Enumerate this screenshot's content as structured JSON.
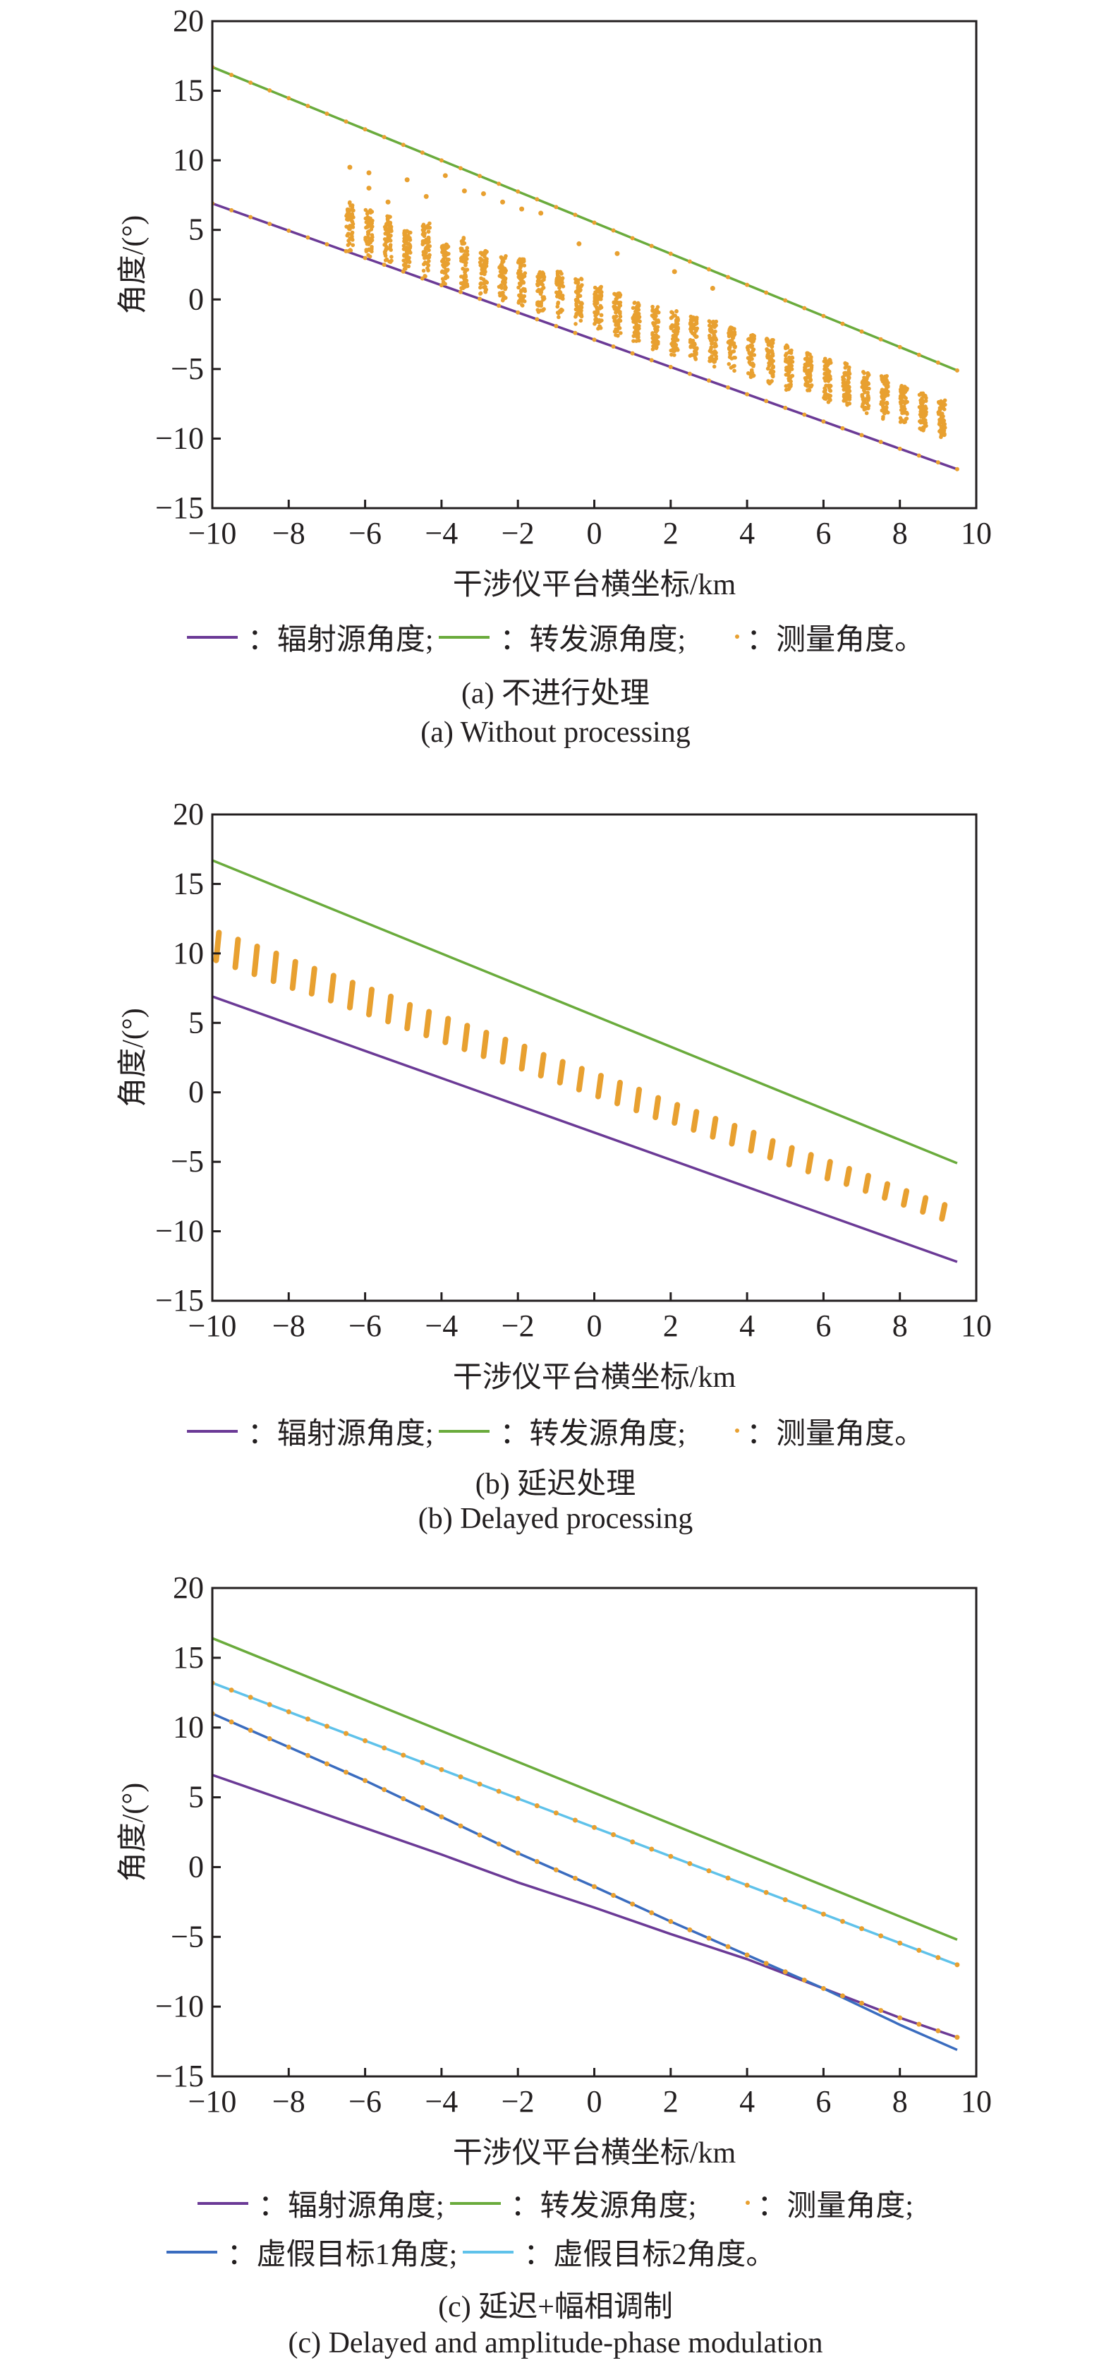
{
  "colors": {
    "radiation": "#6b3a96",
    "transmitter": "#6aab3c",
    "measured": "#e8a030",
    "target1": "#3a6cbf",
    "target2": "#5fc2ea",
    "axis": "#231f20"
  },
  "legend_labels": {
    "radiation": "：辐射源角度;",
    "transmitter": "：转发源角度;",
    "measured_end": "：测量角度。",
    "measured_semi": "：测量角度;",
    "target1": "：虚假目标1角度;",
    "target2": "：虚假目标2角度。"
  },
  "chart_data": [
    {
      "id": "a",
      "type": "scatter",
      "title_cn": "(a) 不进行处理",
      "title_en": "(a) Without processing",
      "xlabel": "干涉仪平台横坐标/km",
      "ylabel": "角度/(°)",
      "xlim": [
        -10,
        10
      ],
      "ylim": [
        -15,
        20
      ],
      "xticks": [
        "−10",
        "−8",
        "−6",
        "−4",
        "−2",
        "0",
        "2",
        "4",
        "6",
        "8",
        "10"
      ],
      "yticks": [
        "−15",
        "−10",
        "−5",
        "0",
        "5",
        "10",
        "15",
        "20"
      ],
      "lines": [
        {
          "name": "辐射源角度",
          "key": "radiation",
          "points": [
            [
              -10,
              6.9
            ],
            [
              9.5,
              -12.2
            ]
          ]
        },
        {
          "name": "转发源角度",
          "key": "transmitter",
          "points": [
            [
              -10,
              16.7
            ],
            [
              9.5,
              -5.1
            ]
          ]
        }
      ],
      "measured_on_lines": true,
      "measured_columns": [
        [
          -6.4,
          3.4,
          7.0
        ],
        [
          -5.9,
          2.9,
          6.5
        ],
        [
          -5.4,
          2.5,
          6.0
        ],
        [
          -4.9,
          2.1,
          5.0
        ],
        [
          -4.4,
          1.6,
          5.5
        ],
        [
          -3.9,
          1.1,
          4.0
        ],
        [
          -3.4,
          0.7,
          4.5
        ],
        [
          -2.9,
          0.3,
          3.5
        ],
        [
          -2.4,
          -0.1,
          3.2
        ],
        [
          -1.9,
          -0.6,
          3.0
        ],
        [
          -1.4,
          -1.0,
          2.0
        ],
        [
          -0.9,
          -1.4,
          2.0
        ],
        [
          -0.4,
          -1.8,
          1.5
        ],
        [
          0.1,
          -2.3,
          1.0
        ],
        [
          0.6,
          -2.7,
          0.5
        ],
        [
          1.1,
          -3.1,
          -0.2
        ],
        [
          1.6,
          -3.6,
          -0.5
        ],
        [
          2.1,
          -4.0,
          -0.8
        ],
        [
          2.6,
          -4.4,
          -1.2
        ],
        [
          3.1,
          -4.9,
          -1.5
        ],
        [
          3.6,
          -5.3,
          -2.0
        ],
        [
          4.1,
          -5.7,
          -2.5
        ],
        [
          4.6,
          -6.1,
          -2.8
        ],
        [
          5.1,
          -6.6,
          -3.3
        ],
        [
          5.6,
          -7.0,
          -3.8
        ],
        [
          6.1,
          -7.4,
          -4.2
        ],
        [
          6.6,
          -7.8,
          -4.5
        ],
        [
          7.1,
          -8.2,
          -5.2
        ],
        [
          7.6,
          -8.6,
          -5.5
        ],
        [
          8.1,
          -9.1,
          -6.2
        ],
        [
          8.6,
          -9.5,
          -6.7
        ],
        [
          9.1,
          -10.0,
          -7.2
        ]
      ],
      "measured_outliers": [
        [
          -6.4,
          9.5
        ],
        [
          -5.9,
          9.1
        ],
        [
          -5.9,
          8.0
        ],
        [
          -5.4,
          7.0
        ],
        [
          -4.9,
          8.6
        ],
        [
          -4.4,
          7.4
        ],
        [
          -3.9,
          8.9
        ],
        [
          -3.4,
          7.8
        ],
        [
          -2.9,
          7.6
        ],
        [
          -2.4,
          7.0
        ],
        [
          -1.9,
          6.5
        ],
        [
          -1.4,
          6.2
        ],
        [
          -0.4,
          4.0
        ],
        [
          0.6,
          3.3
        ],
        [
          2.1,
          2.0
        ],
        [
          3.1,
          0.8
        ]
      ]
    },
    {
      "id": "b",
      "type": "scatter",
      "title_cn": "(b) 延迟处理",
      "title_en": "(b) Delayed processing",
      "xlabel": "干涉仪平台横坐标/km",
      "ylabel": "角度/(°)",
      "xlim": [
        -10,
        10
      ],
      "ylim": [
        -15,
        20
      ],
      "xticks": [
        "−10",
        "−8",
        "−6",
        "−4",
        "−2",
        "0",
        "2",
        "4",
        "6",
        "8",
        "10"
      ],
      "yticks": [
        "−15",
        "−10",
        "−5",
        "0",
        "5",
        "10",
        "15",
        "20"
      ],
      "lines": [
        {
          "name": "辐射源角度",
          "key": "radiation",
          "points": [
            [
              -10,
              6.9
            ],
            [
              9.5,
              -12.2
            ]
          ]
        },
        {
          "name": "转发源角度",
          "key": "transmitter",
          "points": [
            [
              -10,
              16.7
            ],
            [
              9.5,
              -5.1
            ]
          ]
        }
      ],
      "measured_on_lines": false,
      "measured_columns": [
        [
          -9.9,
          9.5,
          11.5
        ],
        [
          -9.4,
          9.0,
          11.0
        ],
        [
          -8.9,
          8.5,
          10.5
        ],
        [
          -8.4,
          8.0,
          10.0
        ],
        [
          -7.9,
          7.5,
          9.4
        ],
        [
          -7.4,
          7.1,
          8.9
        ],
        [
          -6.9,
          6.6,
          8.4
        ],
        [
          -6.4,
          6.1,
          7.9
        ],
        [
          -5.9,
          5.6,
          7.4
        ],
        [
          -5.4,
          5.1,
          6.9
        ],
        [
          -4.9,
          4.6,
          6.3
        ],
        [
          -4.4,
          4.1,
          5.8
        ],
        [
          -3.9,
          3.6,
          5.3
        ],
        [
          -3.4,
          3.1,
          4.8
        ],
        [
          -2.9,
          2.6,
          4.3
        ],
        [
          -2.4,
          2.2,
          3.8
        ],
        [
          -1.9,
          1.7,
          3.3
        ],
        [
          -1.4,
          1.2,
          2.7
        ],
        [
          -0.9,
          0.7,
          2.2
        ],
        [
          -0.4,
          0.2,
          1.7
        ],
        [
          0.1,
          -0.3,
          1.2
        ],
        [
          0.6,
          -0.8,
          0.7
        ],
        [
          1.1,
          -1.3,
          0.2
        ],
        [
          1.6,
          -1.8,
          -0.4
        ],
        [
          2.1,
          -2.2,
          -0.9
        ],
        [
          2.6,
          -2.7,
          -1.4
        ],
        [
          3.1,
          -3.2,
          -1.9
        ],
        [
          3.6,
          -3.7,
          -2.4
        ],
        [
          4.1,
          -4.2,
          -2.9
        ],
        [
          4.6,
          -4.7,
          -3.5
        ],
        [
          5.1,
          -5.2,
          -4.0
        ],
        [
          5.6,
          -5.7,
          -4.5
        ],
        [
          6.1,
          -6.2,
          -5.0
        ],
        [
          6.6,
          -6.6,
          -5.5
        ],
        [
          7.1,
          -7.1,
          -6.0
        ],
        [
          7.6,
          -7.6,
          -6.6
        ],
        [
          8.1,
          -8.1,
          -7.1
        ],
        [
          8.6,
          -8.6,
          -7.6
        ],
        [
          9.1,
          -9.1,
          -8.1
        ]
      ],
      "measured_outliers": []
    },
    {
      "id": "c",
      "type": "line",
      "title_cn": "(c) 延迟+幅相调制",
      "title_en": "(c) Delayed and amplitude-phase modulation",
      "xlabel": "干涉仪平台横坐标/km",
      "ylabel": "角度/(°)",
      "xlim": [
        -10,
        10
      ],
      "ylim": [
        -15,
        20
      ],
      "xticks": [
        "−10",
        "−8",
        "−6",
        "−4",
        "−2",
        "0",
        "2",
        "4",
        "6",
        "8",
        "10"
      ],
      "yticks": [
        "−15",
        "−10",
        "−5",
        "0",
        "5",
        "10",
        "15",
        "20"
      ],
      "lines": [
        {
          "name": "辐射源角度",
          "key": "radiation",
          "points": [
            [
              -10,
              6.6
            ],
            [
              -6,
              2.8
            ],
            [
              -4,
              0.9
            ],
            [
              -2,
              -1.1
            ],
            [
              0,
              -2.9
            ],
            [
              2,
              -4.8
            ],
            [
              4,
              -6.6
            ],
            [
              6,
              -8.7
            ],
            [
              8,
              -10.8
            ],
            [
              9.5,
              -12.2
            ]
          ]
        },
        {
          "name": "转发源角度",
          "key": "transmitter",
          "points": [
            [
              -10,
              16.4
            ],
            [
              9.5,
              -5.2
            ]
          ]
        },
        {
          "name": "虚假目标1角度",
          "key": "target1",
          "points": [
            [
              -10,
              11.0
            ],
            [
              -6,
              6.2
            ],
            [
              -4,
              3.6
            ],
            [
              -2,
              1.0
            ],
            [
              0,
              -1.4
            ],
            [
              2,
              -3.9
            ],
            [
              4,
              -6.3
            ],
            [
              6,
              -8.7
            ],
            [
              8,
              -11.3
            ],
            [
              9.5,
              -13.1
            ]
          ]
        },
        {
          "name": "虚假目标2角度",
          "key": "target2",
          "points": [
            [
              -10,
              13.2
            ],
            [
              9.5,
              -7.0
            ]
          ]
        }
      ],
      "measured_on_lines_keys": [
        "target2",
        "target1_then_radiation"
      ],
      "measured_columns": [],
      "measured_outliers": []
    }
  ]
}
